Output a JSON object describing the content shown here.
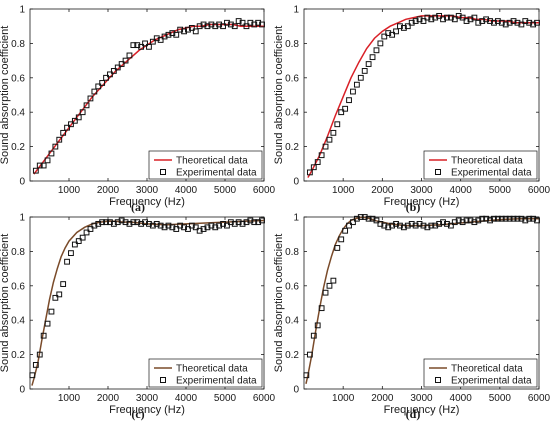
{
  "figure": {
    "colors": {
      "axis": "#1a1a1a",
      "exp_marker": "#111111"
    }
  },
  "chart_data": [
    {
      "panel": "(a)",
      "type": "line",
      "xlabel": "Frequency (Hz)",
      "ylabel": "Sound absorption coefficient",
      "xlim": [
        0,
        6000
      ],
      "ylim": [
        0,
        1
      ],
      "xticks": [
        1000,
        2000,
        3000,
        4000,
        5000,
        6000
      ],
      "yticks": [
        0,
        0.2,
        0.4,
        0.6,
        0.8,
        1
      ],
      "legend_position": "bottom-right",
      "series": [
        {
          "name": "Theoretical data",
          "style": "line",
          "color": "#d92027",
          "x": [
            100,
            200,
            400,
            600,
            800,
            1000,
            1200,
            1400,
            1600,
            1800,
            2000,
            2200,
            2400,
            2600,
            2800,
            3000,
            3200,
            3400,
            3600,
            3800,
            4000,
            4200,
            4400,
            4600,
            4800,
            5000,
            5200,
            5400,
            5600,
            5800,
            6000
          ],
          "y": [
            0.04,
            0.07,
            0.13,
            0.19,
            0.25,
            0.31,
            0.37,
            0.43,
            0.49,
            0.54,
            0.59,
            0.64,
            0.68,
            0.72,
            0.76,
            0.79,
            0.82,
            0.84,
            0.86,
            0.88,
            0.89,
            0.9,
            0.9,
            0.91,
            0.91,
            0.91,
            0.91,
            0.9,
            0.9,
            0.9,
            0.9
          ]
        },
        {
          "name": "Experimental data",
          "style": "marker",
          "color": "#111111",
          "x": [
            150,
            250,
            350,
            450,
            550,
            650,
            750,
            850,
            950,
            1050,
            1150,
            1250,
            1350,
            1450,
            1550,
            1650,
            1750,
            1850,
            1950,
            2050,
            2150,
            2250,
            2350,
            2450,
            2550,
            2650,
            2750,
            2850,
            2950,
            3050,
            3150,
            3250,
            3350,
            3450,
            3550,
            3650,
            3750,
            3850,
            3950,
            4050,
            4150,
            4250,
            4350,
            4450,
            4550,
            4650,
            4750,
            4850,
            4950,
            5050,
            5150,
            5250,
            5350,
            5450,
            5550,
            5650,
            5750,
            5850,
            5950
          ],
          "y": [
            0.06,
            0.09,
            0.09,
            0.12,
            0.16,
            0.2,
            0.24,
            0.28,
            0.31,
            0.33,
            0.35,
            0.37,
            0.4,
            0.44,
            0.48,
            0.52,
            0.55,
            0.57,
            0.6,
            0.62,
            0.64,
            0.66,
            0.68,
            0.7,
            0.73,
            0.79,
            0.79,
            0.78,
            0.8,
            0.78,
            0.81,
            0.83,
            0.82,
            0.84,
            0.85,
            0.86,
            0.85,
            0.88,
            0.87,
            0.88,
            0.89,
            0.87,
            0.9,
            0.91,
            0.9,
            0.91,
            0.9,
            0.91,
            0.9,
            0.92,
            0.91,
            0.9,
            0.93,
            0.92,
            0.9,
            0.92,
            0.91,
            0.92,
            0.91
          ]
        }
      ]
    },
    {
      "panel": "(b)",
      "type": "line",
      "xlabel": "Frequency (Hz)",
      "ylabel": "Sound absorption coefficient",
      "xlim": [
        0,
        6000
      ],
      "ylim": [
        0,
        1
      ],
      "xticks": [
        1000,
        2000,
        3000,
        4000,
        5000,
        6000
      ],
      "yticks": [
        0,
        0.2,
        0.4,
        0.6,
        0.8,
        1
      ],
      "legend_position": "bottom-right",
      "series": [
        {
          "name": "Theoretical data",
          "style": "line",
          "color": "#d92027",
          "x": [
            100,
            200,
            400,
            600,
            800,
            1000,
            1200,
            1400,
            1600,
            1800,
            2000,
            2200,
            2400,
            2600,
            2800,
            3000,
            3200,
            3400,
            3600,
            3800,
            4000,
            4200,
            4400,
            4600,
            4800,
            5000,
            5200,
            5400,
            5600,
            5800,
            6000
          ],
          "y": [
            0.02,
            0.06,
            0.15,
            0.26,
            0.38,
            0.49,
            0.6,
            0.69,
            0.77,
            0.83,
            0.87,
            0.9,
            0.92,
            0.94,
            0.95,
            0.96,
            0.96,
            0.96,
            0.96,
            0.96,
            0.95,
            0.95,
            0.94,
            0.94,
            0.93,
            0.93,
            0.93,
            0.92,
            0.92,
            0.92,
            0.92
          ]
        },
        {
          "name": "Experimental data",
          "style": "marker",
          "color": "#111111",
          "x": [
            150,
            250,
            350,
            450,
            550,
            650,
            750,
            850,
            950,
            1050,
            1150,
            1250,
            1350,
            1450,
            1550,
            1650,
            1750,
            1850,
            1950,
            2050,
            2150,
            2250,
            2350,
            2450,
            2550,
            2650,
            2750,
            2850,
            2950,
            3050,
            3150,
            3250,
            3350,
            3450,
            3550,
            3650,
            3750,
            3850,
            3950,
            4050,
            4150,
            4250,
            4350,
            4450,
            4550,
            4650,
            4750,
            4850,
            4950,
            5050,
            5150,
            5250,
            5350,
            5450,
            5550,
            5650,
            5750,
            5850,
            5950
          ],
          "y": [
            0.05,
            0.08,
            0.11,
            0.15,
            0.2,
            0.24,
            0.28,
            0.33,
            0.4,
            0.42,
            0.47,
            0.52,
            0.56,
            0.6,
            0.64,
            0.68,
            0.72,
            0.76,
            0.8,
            0.84,
            0.86,
            0.85,
            0.87,
            0.9,
            0.89,
            0.9,
            0.92,
            0.93,
            0.94,
            0.93,
            0.95,
            0.94,
            0.95,
            0.96,
            0.94,
            0.95,
            0.95,
            0.94,
            0.96,
            0.95,
            0.93,
            0.94,
            0.95,
            0.92,
            0.93,
            0.94,
            0.93,
            0.92,
            0.93,
            0.92,
            0.91,
            0.92,
            0.93,
            0.92,
            0.91,
            0.93,
            0.92,
            0.91,
            0.92
          ]
        }
      ]
    },
    {
      "panel": "(c)",
      "type": "line",
      "xlabel": "Frequency (Hz)",
      "ylabel": "Sound absorption coefficient",
      "xlim": [
        0,
        6000
      ],
      "ylim": [
        0,
        1
      ],
      "xticks": [
        1000,
        2000,
        3000,
        4000,
        5000,
        6000
      ],
      "yticks": [
        0,
        0.2,
        0.4,
        0.6,
        0.8,
        1
      ],
      "legend_position": "bottom-right",
      "series": [
        {
          "name": "Theoretical data",
          "style": "line",
          "color": "#7a4b2a",
          "x": [
            50,
            100,
            200,
            300,
            400,
            500,
            600,
            700,
            800,
            900,
            1000,
            1200,
            1400,
            1600,
            1800,
            2000,
            2200,
            2400,
            2600,
            2800,
            3000,
            3500,
            4000,
            4500,
            5000,
            5500,
            6000
          ],
          "y": [
            0.02,
            0.06,
            0.15,
            0.28,
            0.4,
            0.52,
            0.62,
            0.7,
            0.77,
            0.82,
            0.86,
            0.91,
            0.94,
            0.96,
            0.97,
            0.975,
            0.975,
            0.97,
            0.97,
            0.965,
            0.96,
            0.955,
            0.96,
            0.965,
            0.97,
            0.975,
            0.98
          ]
        },
        {
          "name": "Experimental data",
          "style": "marker",
          "color": "#111111",
          "x": [
            60,
            150,
            250,
            350,
            450,
            550,
            650,
            750,
            850,
            950,
            1050,
            1150,
            1250,
            1350,
            1450,
            1550,
            1650,
            1750,
            1850,
            1950,
            2050,
            2150,
            2250,
            2350,
            2450,
            2550,
            2650,
            2750,
            2850,
            2950,
            3050,
            3150,
            3250,
            3350,
            3450,
            3550,
            3650,
            3750,
            3850,
            3950,
            4050,
            4150,
            4250,
            4350,
            4450,
            4550,
            4650,
            4750,
            4850,
            4950,
            5050,
            5150,
            5250,
            5350,
            5450,
            5550,
            5650,
            5750,
            5850,
            5950
          ],
          "y": [
            0.08,
            0.14,
            0.2,
            0.31,
            0.38,
            0.45,
            0.53,
            0.55,
            0.61,
            0.74,
            0.79,
            0.84,
            0.86,
            0.88,
            0.91,
            0.93,
            0.95,
            0.96,
            0.97,
            0.97,
            0.97,
            0.96,
            0.97,
            0.98,
            0.97,
            0.96,
            0.97,
            0.97,
            0.96,
            0.97,
            0.96,
            0.95,
            0.96,
            0.95,
            0.94,
            0.95,
            0.94,
            0.93,
            0.95,
            0.94,
            0.93,
            0.95,
            0.94,
            0.92,
            0.93,
            0.94,
            0.95,
            0.94,
            0.95,
            0.96,
            0.95,
            0.97,
            0.96,
            0.97,
            0.96,
            0.97,
            0.98,
            0.97,
            0.97,
            0.98
          ]
        }
      ]
    },
    {
      "panel": "(d)",
      "type": "line",
      "xlabel": "Frequency (Hz)",
      "ylabel": "Sound absorption coefficient",
      "xlim": [
        0,
        6000
      ],
      "ylim": [
        0,
        1
      ],
      "xticks": [
        1000,
        2000,
        3000,
        4000,
        5000,
        6000
      ],
      "yticks": [
        0,
        0.2,
        0.4,
        0.6,
        0.8,
        1
      ],
      "legend_position": "bottom-right",
      "series": [
        {
          "name": "Theoretical data",
          "style": "line",
          "color": "#7a4b2a",
          "x": [
            50,
            100,
            200,
            300,
            400,
            500,
            600,
            700,
            800,
            900,
            1000,
            1100,
            1200,
            1300,
            1400,
            1500,
            1600,
            1700,
            1800,
            2000,
            2200,
            2400,
            2600,
            2800,
            3000,
            3500,
            4000,
            4500,
            5000,
            5500,
            6000
          ],
          "y": [
            0.03,
            0.08,
            0.2,
            0.34,
            0.47,
            0.59,
            0.69,
            0.77,
            0.84,
            0.89,
            0.93,
            0.96,
            0.98,
            0.99,
            0.995,
            1.0,
            0.995,
            0.99,
            0.98,
            0.97,
            0.96,
            0.955,
            0.95,
            0.95,
            0.95,
            0.955,
            0.965,
            0.975,
            0.985,
            0.99,
            0.99
          ]
        },
        {
          "name": "Experimental data",
          "style": "marker",
          "color": "#111111",
          "x": [
            60,
            150,
            250,
            350,
            450,
            550,
            650,
            750,
            850,
            950,
            1050,
            1150,
            1250,
            1350,
            1450,
            1550,
            1650,
            1750,
            1850,
            1950,
            2050,
            2150,
            2250,
            2350,
            2450,
            2550,
            2650,
            2750,
            2850,
            2950,
            3050,
            3150,
            3250,
            3350,
            3450,
            3550,
            3650,
            3750,
            3850,
            3950,
            4050,
            4150,
            4250,
            4350,
            4450,
            4550,
            4650,
            4750,
            4850,
            4950,
            5050,
            5150,
            5250,
            5350,
            5450,
            5550,
            5650,
            5750,
            5850,
            5950
          ],
          "y": [
            0.08,
            0.2,
            0.31,
            0.37,
            0.47,
            0.56,
            0.6,
            0.63,
            0.82,
            0.87,
            0.92,
            0.95,
            0.97,
            0.99,
            1.0,
            1.0,
            0.99,
            0.99,
            0.98,
            0.96,
            0.95,
            0.94,
            0.95,
            0.96,
            0.95,
            0.94,
            0.95,
            0.96,
            0.95,
            0.96,
            0.95,
            0.94,
            0.95,
            0.95,
            0.96,
            0.97,
            0.96,
            0.95,
            0.97,
            0.98,
            0.97,
            0.98,
            0.98,
            0.97,
            0.98,
            0.99,
            0.99,
            0.98,
            0.99,
            0.99,
            0.99,
            0.99,
            0.99,
            0.99,
            0.99,
            0.99,
            0.98,
            0.99,
            0.99,
            0.98
          ]
        }
      ]
    }
  ]
}
